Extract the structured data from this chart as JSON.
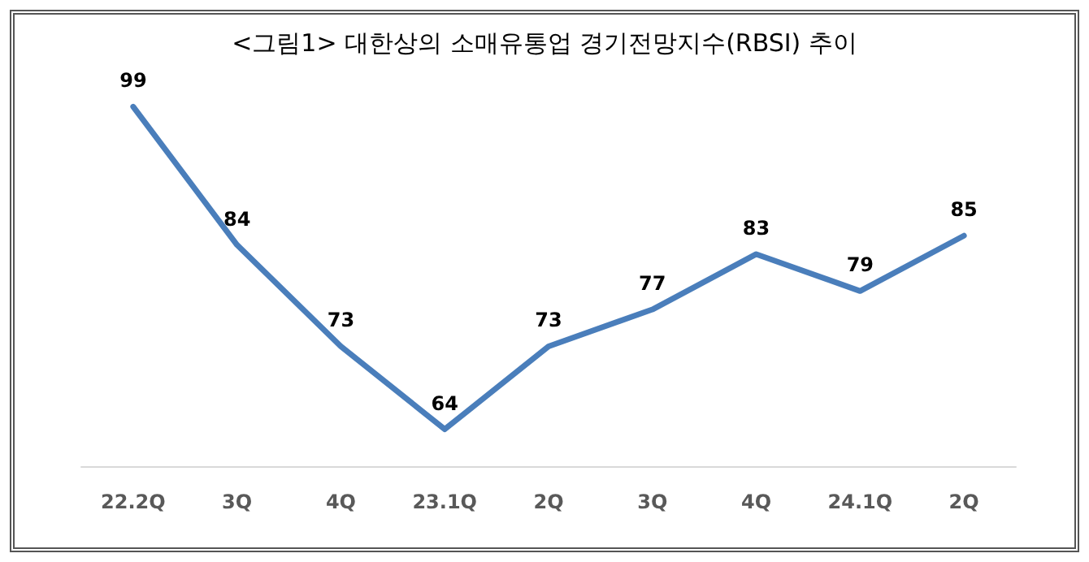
{
  "chart_data": {
    "type": "line",
    "title": "<그림1> 대한상의 소매유통업 경기전망지수(RBSI) 추이",
    "categories": [
      "22.2Q",
      "3Q",
      "4Q",
      "23.1Q",
      "2Q",
      "3Q",
      "4Q",
      "24.1Q",
      "2Q"
    ],
    "series": [
      {
        "color": "#4a7ebb",
        "values": [
          99,
          84,
          73,
          64,
          73,
          77,
          83,
          79,
          85
        ]
      }
    ],
    "tick_labels": "x",
    "data_labels": true,
    "grid": false,
    "marker": "none",
    "line_style": "solid"
  }
}
